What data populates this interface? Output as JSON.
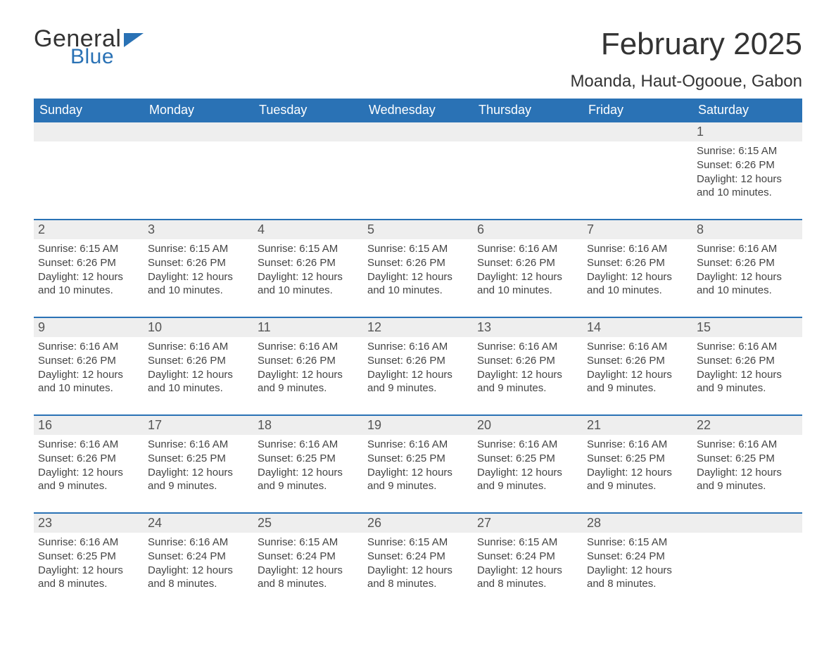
{
  "brand": {
    "line1": "General",
    "line2": "Blue",
    "accent_color": "#2a72b5"
  },
  "calendar": {
    "title": "February 2025",
    "location": "Moanda, Haut-Ogooue, Gabon",
    "header_bg": "#2a72b5",
    "header_fg": "#ffffff",
    "band_bg": "#eeeeee",
    "divider_color": "#2a72b5",
    "text_color": "#444444",
    "title_fontsize_pt": 33,
    "location_fontsize_pt": 18,
    "dow_fontsize_pt": 13,
    "daynum_fontsize_pt": 13,
    "body_fontsize_pt": 11,
    "day_names": [
      "Sunday",
      "Monday",
      "Tuesday",
      "Wednesday",
      "Thursday",
      "Friday",
      "Saturday"
    ],
    "labels": {
      "sunrise": "Sunrise: ",
      "sunset": "Sunset: ",
      "daylight": "Daylight: "
    },
    "weeks": [
      [
        null,
        null,
        null,
        null,
        null,
        null,
        {
          "n": "1",
          "sunrise": "6:15 AM",
          "sunset": "6:26 PM",
          "daylight": "12 hours and 10 minutes."
        }
      ],
      [
        {
          "n": "2",
          "sunrise": "6:15 AM",
          "sunset": "6:26 PM",
          "daylight": "12 hours and 10 minutes."
        },
        {
          "n": "3",
          "sunrise": "6:15 AM",
          "sunset": "6:26 PM",
          "daylight": "12 hours and 10 minutes."
        },
        {
          "n": "4",
          "sunrise": "6:15 AM",
          "sunset": "6:26 PM",
          "daylight": "12 hours and 10 minutes."
        },
        {
          "n": "5",
          "sunrise": "6:15 AM",
          "sunset": "6:26 PM",
          "daylight": "12 hours and 10 minutes."
        },
        {
          "n": "6",
          "sunrise": "6:16 AM",
          "sunset": "6:26 PM",
          "daylight": "12 hours and 10 minutes."
        },
        {
          "n": "7",
          "sunrise": "6:16 AM",
          "sunset": "6:26 PM",
          "daylight": "12 hours and 10 minutes."
        },
        {
          "n": "8",
          "sunrise": "6:16 AM",
          "sunset": "6:26 PM",
          "daylight": "12 hours and 10 minutes."
        }
      ],
      [
        {
          "n": "9",
          "sunrise": "6:16 AM",
          "sunset": "6:26 PM",
          "daylight": "12 hours and 10 minutes."
        },
        {
          "n": "10",
          "sunrise": "6:16 AM",
          "sunset": "6:26 PM",
          "daylight": "12 hours and 10 minutes."
        },
        {
          "n": "11",
          "sunrise": "6:16 AM",
          "sunset": "6:26 PM",
          "daylight": "12 hours and 9 minutes."
        },
        {
          "n": "12",
          "sunrise": "6:16 AM",
          "sunset": "6:26 PM",
          "daylight": "12 hours and 9 minutes."
        },
        {
          "n": "13",
          "sunrise": "6:16 AM",
          "sunset": "6:26 PM",
          "daylight": "12 hours and 9 minutes."
        },
        {
          "n": "14",
          "sunrise": "6:16 AM",
          "sunset": "6:26 PM",
          "daylight": "12 hours and 9 minutes."
        },
        {
          "n": "15",
          "sunrise": "6:16 AM",
          "sunset": "6:26 PM",
          "daylight": "12 hours and 9 minutes."
        }
      ],
      [
        {
          "n": "16",
          "sunrise": "6:16 AM",
          "sunset": "6:26 PM",
          "daylight": "12 hours and 9 minutes."
        },
        {
          "n": "17",
          "sunrise": "6:16 AM",
          "sunset": "6:25 PM",
          "daylight": "12 hours and 9 minutes."
        },
        {
          "n": "18",
          "sunrise": "6:16 AM",
          "sunset": "6:25 PM",
          "daylight": "12 hours and 9 minutes."
        },
        {
          "n": "19",
          "sunrise": "6:16 AM",
          "sunset": "6:25 PM",
          "daylight": "12 hours and 9 minutes."
        },
        {
          "n": "20",
          "sunrise": "6:16 AM",
          "sunset": "6:25 PM",
          "daylight": "12 hours and 9 minutes."
        },
        {
          "n": "21",
          "sunrise": "6:16 AM",
          "sunset": "6:25 PM",
          "daylight": "12 hours and 9 minutes."
        },
        {
          "n": "22",
          "sunrise": "6:16 AM",
          "sunset": "6:25 PM",
          "daylight": "12 hours and 9 minutes."
        }
      ],
      [
        {
          "n": "23",
          "sunrise": "6:16 AM",
          "sunset": "6:25 PM",
          "daylight": "12 hours and 8 minutes."
        },
        {
          "n": "24",
          "sunrise": "6:16 AM",
          "sunset": "6:24 PM",
          "daylight": "12 hours and 8 minutes."
        },
        {
          "n": "25",
          "sunrise": "6:15 AM",
          "sunset": "6:24 PM",
          "daylight": "12 hours and 8 minutes."
        },
        {
          "n": "26",
          "sunrise": "6:15 AM",
          "sunset": "6:24 PM",
          "daylight": "12 hours and 8 minutes."
        },
        {
          "n": "27",
          "sunrise": "6:15 AM",
          "sunset": "6:24 PM",
          "daylight": "12 hours and 8 minutes."
        },
        {
          "n": "28",
          "sunrise": "6:15 AM",
          "sunset": "6:24 PM",
          "daylight": "12 hours and 8 minutes."
        },
        null
      ]
    ]
  }
}
